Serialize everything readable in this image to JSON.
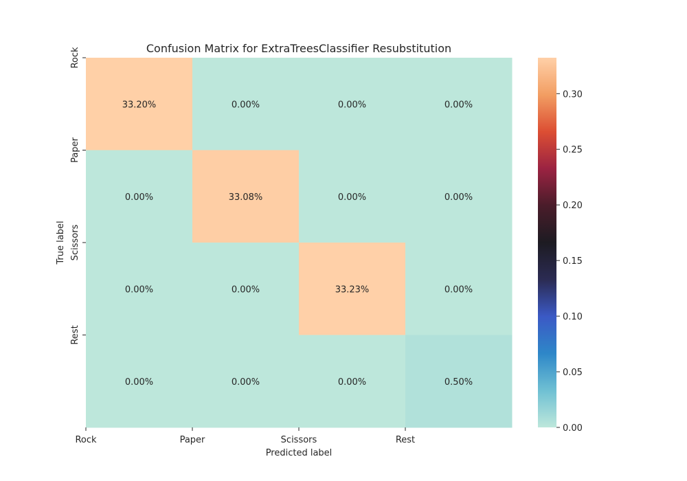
{
  "chart_data": {
    "type": "heatmap",
    "title": "Confusion Matrix for ExtraTreesClassifier Resubstitution",
    "xlabel": "Predicted label",
    "ylabel": "True label",
    "x_categories": [
      "Rock",
      "Paper",
      "Scissors",
      "Rest"
    ],
    "y_categories": [
      "Rock",
      "Paper",
      "Scissors",
      "Rest"
    ],
    "values": [
      [
        0.332,
        0.0,
        0.0,
        0.0
      ],
      [
        0.0,
        0.3308,
        0.0,
        0.0
      ],
      [
        0.0,
        0.0,
        0.3323,
        0.0
      ],
      [
        0.0,
        0.0,
        0.0,
        0.005
      ]
    ],
    "cell_labels": [
      [
        "33.20%",
        "0.00%",
        "0.00%",
        "0.00%"
      ],
      [
        "0.00%",
        "33.08%",
        "0.00%",
        "0.00%"
      ],
      [
        "0.00%",
        "0.00%",
        "33.23%",
        "0.00%"
      ],
      [
        "0.00%",
        "0.00%",
        "0.00%",
        "0.50%"
      ]
    ],
    "colorbar": {
      "min": 0,
      "max": 0.3323,
      "ticks": [
        0.0,
        0.05,
        0.1,
        0.15,
        0.2,
        0.25,
        0.3
      ],
      "tick_labels": [
        "0.00",
        "0.05",
        "0.10",
        "0.15",
        "0.20",
        "0.25",
        "0.30"
      ],
      "colormap": "icefire",
      "stops": [
        "#bde7db",
        "#6fc0d3",
        "#2e87c8",
        "#3b59c5",
        "#2b2b53",
        "#1d1b22",
        "#4a1c2a",
        "#9b2342",
        "#dc4e33",
        "#f29e63",
        "#ffd0a8"
      ]
    },
    "grid": false,
    "legend": "none"
  }
}
